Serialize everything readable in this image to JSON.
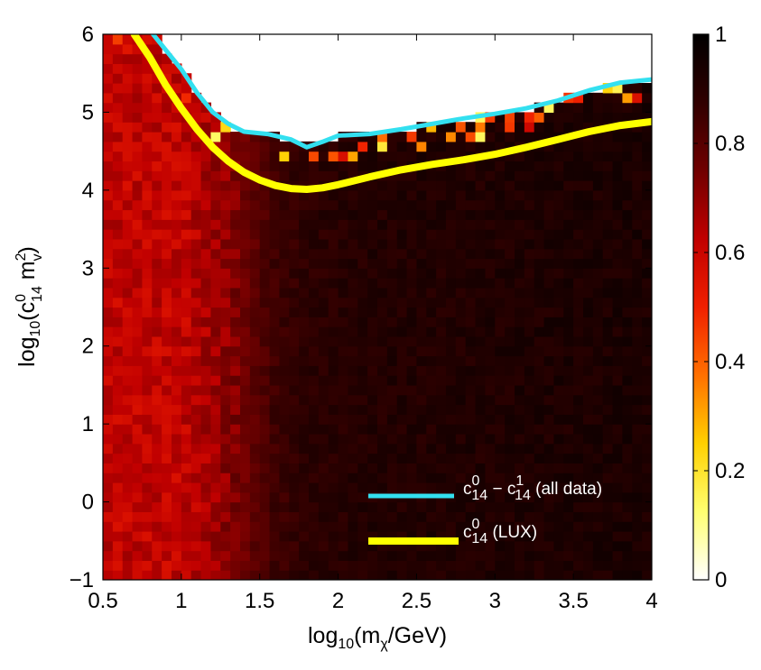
{
  "chart_data": {
    "type": "heatmap",
    "xlabel": {
      "base": "log",
      "base_sub": "10",
      "open": "(m",
      "sub": "χ",
      "close": "/GeV)"
    },
    "ylabel": {
      "base": "log",
      "base_sub": "10",
      "open": "(c",
      "sup1": "0",
      "sub1": "14",
      "mid": " m",
      "sup2": "2",
      "sub2": "v",
      "close": ")"
    },
    "xlim": [
      0.5,
      4
    ],
    "ylim": [
      -1,
      6
    ],
    "xticks": [
      0.5,
      1,
      1.5,
      2,
      2.5,
      3,
      3.5,
      4
    ],
    "xtick_labels": [
      "0.5",
      "1",
      "1.5",
      "2",
      "2.5",
      "3",
      "3.5",
      "4"
    ],
    "yticks": [
      -1,
      0,
      1,
      2,
      3,
      4,
      5,
      6
    ],
    "ytick_labels": [
      "−1",
      "0",
      "1",
      "2",
      "3",
      "4",
      "5",
      "6"
    ],
    "colorbar": {
      "range": [
        0,
        1
      ],
      "ticks": [
        0,
        0.2,
        0.4,
        0.6,
        0.8,
        1
      ],
      "tick_labels": [
        "0",
        "0.2",
        "0.4",
        "0.6",
        "0.8",
        "1"
      ],
      "colormap": "hot (inverted)",
      "colors": [
        "#ffffff",
        "#ffff70",
        "#ffd000",
        "#ff7000",
        "#f02000",
        "#c00000",
        "#700000",
        "#300000",
        "#000000"
      ]
    },
    "grid": false,
    "heatmap_trend": {
      "description": "red (~0.6) at low mass, darkening to ~0.9 above log10 mass 1.7",
      "x_transition_points": [
        0.5,
        1.0,
        1.2,
        1.4,
        1.6,
        1.8,
        2.2,
        4.0
      ],
      "value_at_points": [
        0.62,
        0.62,
        0.67,
        0.76,
        0.85,
        0.89,
        0.91,
        0.93
      ]
    },
    "series": [
      {
        "name": "c14_0 - c14_1 (all data)",
        "color": "#33e0f0",
        "x": [
          0.8,
          0.88,
          1.0,
          1.1,
          1.2,
          1.3,
          1.4,
          1.55,
          1.7,
          1.8,
          1.9,
          2.0,
          2.2,
          2.4,
          2.6,
          2.8,
          3.0,
          3.2,
          3.4,
          3.6,
          3.8,
          4.0
        ],
        "y": [
          6.05,
          5.85,
          5.55,
          5.25,
          5.0,
          4.85,
          4.75,
          4.72,
          4.65,
          4.55,
          4.62,
          4.7,
          4.72,
          4.78,
          4.85,
          4.92,
          4.98,
          5.05,
          5.15,
          5.28,
          5.38,
          5.42
        ]
      },
      {
        "name": "c14_0 (LUX)",
        "color": "#ffff00",
        "x": [
          0.7,
          0.8,
          0.9,
          1.0,
          1.1,
          1.2,
          1.3,
          1.4,
          1.5,
          1.6,
          1.7,
          1.8,
          1.9,
          2.0,
          2.2,
          2.4,
          2.6,
          2.8,
          3.0,
          3.2,
          3.4,
          3.6,
          3.8,
          4.0
        ],
        "y": [
          6.0,
          5.7,
          5.35,
          5.05,
          4.78,
          4.55,
          4.37,
          4.23,
          4.13,
          4.06,
          4.02,
          4.01,
          4.03,
          4.07,
          4.17,
          4.26,
          4.33,
          4.39,
          4.46,
          4.55,
          4.65,
          4.75,
          4.83,
          4.88
        ]
      }
    ],
    "legend": {
      "placement": "bottom-right",
      "entries": [
        {
          "c_sup": "0",
          "c_sub": "14",
          "minus": " − c",
          "c2_sup": "1",
          "c2_sub": "14",
          "rest": " (all data)"
        },
        {
          "c_sup": "0",
          "c_sub": "14",
          "rest": " (LUX)"
        }
      ]
    }
  }
}
